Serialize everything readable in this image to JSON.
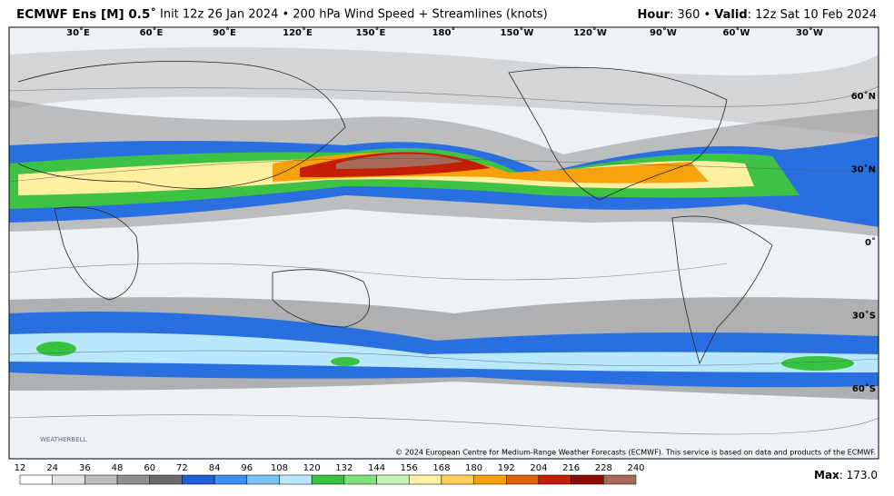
{
  "header": {
    "title_bold": "ECMWF Ens [M] 0.5˚",
    "title_rest": "Init 12z 26 Jan 2024 • 200 hPa Wind Speed + Streamlines (knots)",
    "hour_label": "Hour",
    "hour_value": ": 360 • ",
    "valid_label": "Valid",
    "valid_value": ": 12z Sat 10 Feb 2024"
  },
  "map": {
    "longitudes": [
      "30˚E",
      "60˚E",
      "90˚E",
      "120˚E",
      "150˚E",
      "180˚",
      "150˚W",
      "120˚W",
      "90˚W",
      "60˚W",
      "30˚W"
    ],
    "latitudes": [
      "60˚N",
      "30˚N",
      "0˚",
      "30˚S",
      "60˚S"
    ],
    "copyright": "© 2024 European Centre for Medium-Range Weather Forecasts (ECMWF). This service is based on data and products of the ECMWF.",
    "logo": "WEATHERBELL"
  },
  "colorbar": {
    "labels": [
      12,
      24,
      36,
      48,
      60,
      72,
      84,
      96,
      108,
      120,
      132,
      144,
      156,
      168,
      180,
      192,
      204,
      216,
      228,
      240
    ],
    "colors": [
      "#ffffff",
      "#e2e2e2",
      "#bdbdbd",
      "#8f8f8f",
      "#6a6a6a",
      "#1f5fd6",
      "#3f8ef2",
      "#7cc3f7",
      "#b9e7fb",
      "#37c23f",
      "#7fe07b",
      "#c6f3b3",
      "#fff1a6",
      "#ffd05c",
      "#f6a10c",
      "#e0620a",
      "#c41e05",
      "#8c0b02",
      "#a76a58"
    ]
  },
  "footer": {
    "max_label": "Max",
    "max_value": ": 173.0"
  }
}
